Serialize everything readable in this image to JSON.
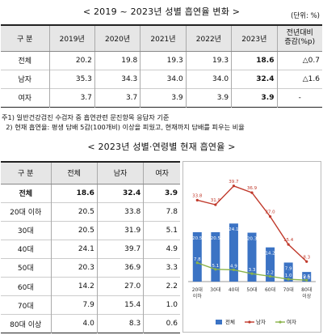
{
  "title1": "< 2019 ~ 2023년 성별 흡연율 변화 >",
  "unit1": "(단위: %)",
  "table1": {
    "headers": [
      "구   분",
      "2019년",
      "2020년",
      "2021년",
      "2022년",
      "2023년",
      "전년대비\n증감(%p)"
    ],
    "rows": [
      {
        "label": "전체",
        "values": [
          "20.2",
          "19.8",
          "19.3",
          "19.3",
          "18.6"
        ],
        "change": "△0.7"
      },
      {
        "label": "남자",
        "values": [
          "35.3",
          "34.3",
          "34.0",
          "34.0",
          "32.4"
        ],
        "change": "△1.6"
      },
      {
        "label": "여자",
        "values": [
          "3.7",
          "3.7",
          "3.9",
          "3.9",
          "3.9"
        ],
        "change": "-"
      }
    ]
  },
  "notes": [
    "주1) 일반건강검진 수검자 중 흡연관련 문진항목 응답자 기준",
    "  2) 현재 흡연율: 평생 담배 5갑(100개비) 이상을 피웠고, 현재까지 담배를 피우는 비율"
  ],
  "title2": "< 2023년 성별·연령별 현재 흡연율 >",
  "table2": {
    "headers": [
      "구 분",
      "전체",
      "남자",
      "여자"
    ],
    "rows": [
      {
        "label": "전체",
        "values": [
          "18.6",
          "32.4",
          "3.9"
        ],
        "bold": true
      },
      {
        "label": "20대 이하",
        "values": [
          "20.5",
          "33.8",
          "7.8"
        ]
      },
      {
        "label": "30대",
        "values": [
          "20.5",
          "31.9",
          "5.1"
        ]
      },
      {
        "label": "40대",
        "values": [
          "24.1",
          "39.7",
          "4.9"
        ]
      },
      {
        "label": "50대",
        "values": [
          "20.3",
          "36.9",
          "3.3"
        ]
      },
      {
        "label": "60대",
        "values": [
          "14.2",
          "27.0",
          "2.2"
        ]
      },
      {
        "label": "70대",
        "values": [
          "7.9",
          "15.4",
          "1.0"
        ]
      },
      {
        "label": "80대 이상",
        "values": [
          "4.0",
          "8.3",
          "0.6"
        ]
      }
    ]
  },
  "chart_data": {
    "type": "bar",
    "categories": [
      "20대\n이하",
      "30대",
      "40대",
      "50대",
      "60대",
      "70대",
      "80대\n이상"
    ],
    "series": [
      {
        "name": "전체",
        "kind": "bar",
        "color": "#3b73c4",
        "values": [
          20.5,
          20.5,
          24.1,
          20.3,
          14.2,
          7.9,
          4.0
        ]
      },
      {
        "name": "남자",
        "kind": "line",
        "color": "#c0392b",
        "values": [
          33.8,
          31.9,
          39.7,
          36.9,
          27.0,
          15.4,
          8.3
        ]
      },
      {
        "name": "여자",
        "kind": "line",
        "color": "#8ab34a",
        "values": [
          7.8,
          5.1,
          4.9,
          3.3,
          2.2,
          1.0,
          0.6
        ]
      }
    ],
    "ylim": [
      0,
      45
    ],
    "legend": "bottom"
  }
}
